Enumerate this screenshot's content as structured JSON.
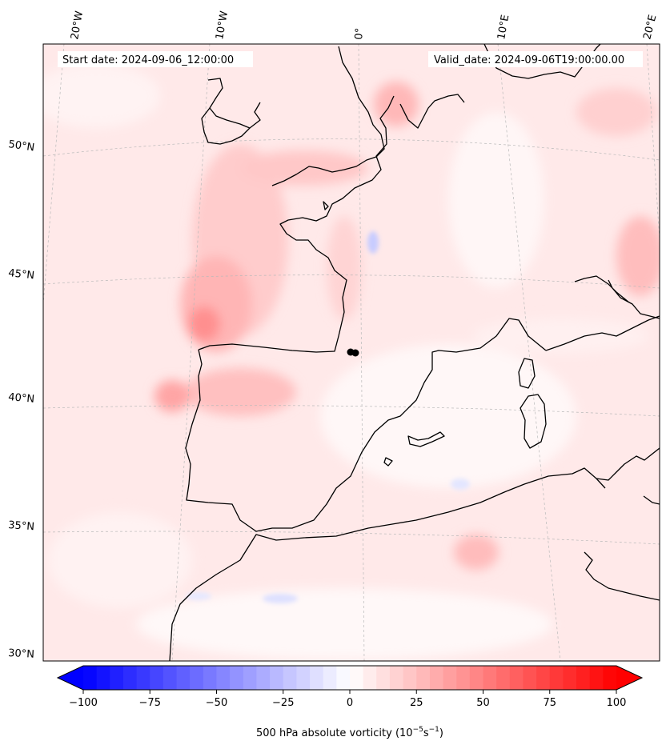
{
  "header": {
    "start_date": "Start date: 2024-09-06_12:00:00",
    "valid_date": "Valid_date: 2024-09-06T19:00:00.00"
  },
  "longitude_labels": [
    "20°W",
    "10°W",
    "0°",
    "10°E",
    "20°E"
  ],
  "latitude_labels": [
    "50°N",
    "45°N",
    "40°N",
    "35°N",
    "30°N"
  ],
  "colorbar": {
    "ticks": [
      "−100",
      "−75",
      "−50",
      "−25",
      "0",
      "25",
      "50",
      "75",
      "100"
    ],
    "min": -100,
    "max": 100,
    "label_text": "500 hPa absolute vorticity (10",
    "label_exp1": "−5",
    "label_mid": "s",
    "label_exp2": "−1",
    "label_end": ")",
    "colors": {
      "negative_end": "#0000ff",
      "neutral": "#ffffff",
      "positive_end": "#ff0000"
    }
  },
  "map_colors": {
    "background_tint": "#ffeaea",
    "coastline": "#000000",
    "gridline": "#b0b0b0",
    "marker": "#000000"
  }
}
